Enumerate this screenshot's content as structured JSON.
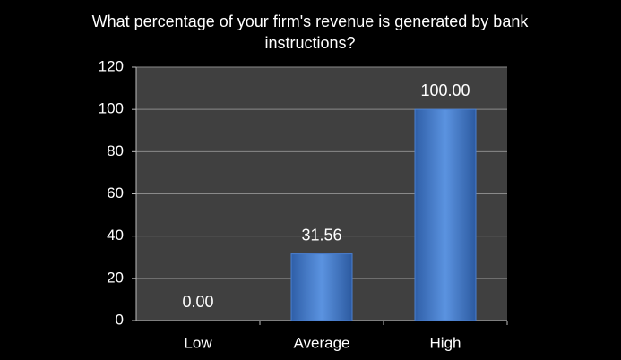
{
  "chart_data": {
    "type": "bar",
    "title": "What percentage of your firm's revenue is generated by bank instructions?",
    "categories": [
      "Low",
      "Average",
      "High"
    ],
    "values": [
      0,
      31.56,
      100
    ],
    "value_labels": [
      "0.00",
      "31.56",
      "100.00"
    ],
    "color": "#4a7fd0",
    "ylim": [
      0,
      120
    ],
    "yticks": [
      0,
      20,
      40,
      60,
      80,
      100,
      120
    ],
    "grid": true
  }
}
